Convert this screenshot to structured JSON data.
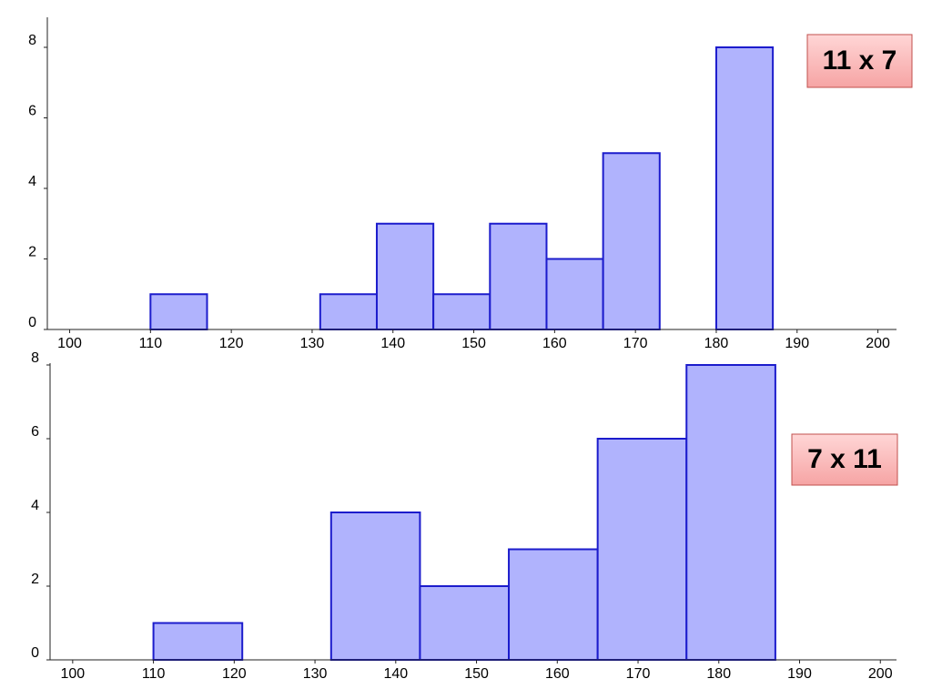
{
  "chart_data": [
    {
      "type": "histogram",
      "annotation": "11 x 7",
      "bins": [
        110,
        117,
        124,
        131,
        138,
        145,
        152,
        159,
        166,
        173,
        180,
        187
      ],
      "values": [
        1,
        0,
        0,
        1,
        3,
        1,
        3,
        2,
        5,
        0,
        8
      ],
      "color": "#b0b3fd",
      "edge_color": "#1c1ccc",
      "xlim": [
        97.8,
        202.3
      ],
      "xticks": [
        100,
        110,
        120,
        130,
        140,
        150,
        160,
        170,
        180,
        190,
        200
      ],
      "ylim": [
        0,
        8.8
      ],
      "yticks": [
        0,
        2,
        4,
        6,
        8
      ],
      "grid": false
    },
    {
      "type": "histogram",
      "annotation": "7 x 11",
      "bins": [
        110,
        121,
        132,
        143,
        154,
        165,
        176,
        187
      ],
      "values": [
        1,
        0,
        4,
        2,
        3,
        6,
        8
      ],
      "color": "#b0b3fd",
      "edge_color": "#1c1ccc",
      "xlim": [
        97.2,
        202.0
      ],
      "xticks": [
        100,
        110,
        120,
        130,
        140,
        150,
        160,
        170,
        180,
        190,
        200
      ],
      "ylim": [
        0,
        8
      ],
      "yticks": [
        0,
        2,
        4,
        6,
        8
      ],
      "grid": false
    }
  ]
}
